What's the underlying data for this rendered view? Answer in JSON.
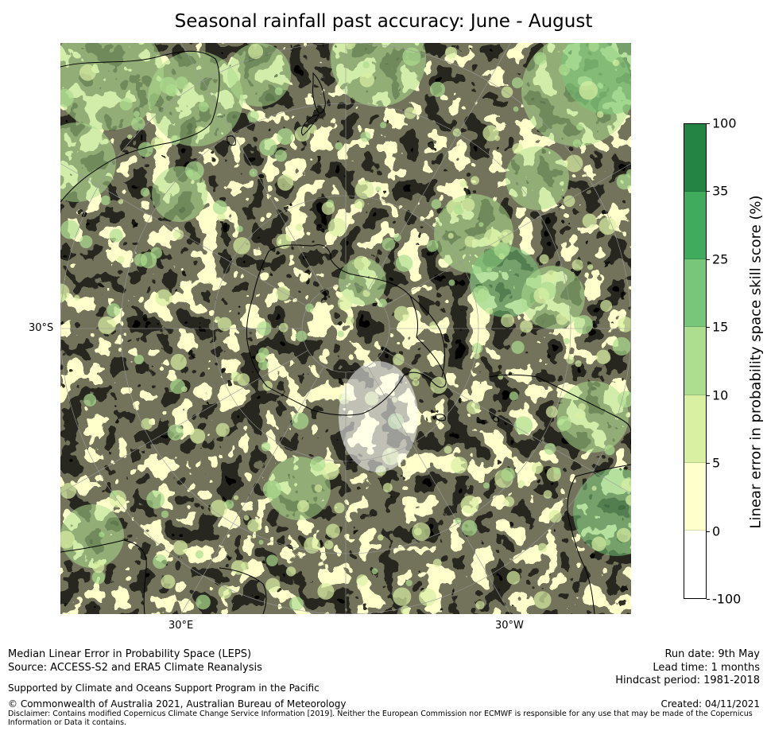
{
  "title": "Seasonal rainfall past accuracy: June - August",
  "map": {
    "labels": {
      "lat_30s": "30°S",
      "lon_30e": "30°E",
      "lon_30w": "30°W"
    },
    "colors": {
      "ocean_low": "#ffffff",
      "land_line": "#000000",
      "grid": "#9a9a9a"
    }
  },
  "colorbar": {
    "label": "Linear error in probability space skill score (%)",
    "ticks": [
      "100",
      "35",
      "25",
      "15",
      "10",
      "5",
      "0",
      "-100"
    ],
    "bins": [
      {
        "range": "35 to 100",
        "color": "#238443"
      },
      {
        "range": "25 to 35",
        "color": "#41ab5d"
      },
      {
        "range": "15 to 25",
        "color": "#78c679"
      },
      {
        "range": "10 to 15",
        "color": "#addd8e"
      },
      {
        "range": "5 to 10",
        "color": "#d9f0a3"
      },
      {
        "range": "0 to 5",
        "color": "#ffffcc"
      },
      {
        "range": "-100 to 0",
        "color": "#ffffff"
      }
    ]
  },
  "footer": {
    "line1": "Median Linear Error in Probability Space (LEPS)",
    "line2": "Source: ACCESS-S2 and ERA5 Climate Reanalysis",
    "support": "Supported by Climate and Oceans Support Program in the Pacific",
    "copyright": "© Commonwealth of Australia 2021, Australian Bureau of Meteorology",
    "disclaimer1": "Disclaimer: Contains modified Copernicus Climate Change Service Information [2019]. Neither the European Commission nor ECMWF is responsible for any use that may be made of the Copernicus",
    "disclaimer2": "Information or Data it contains.",
    "run_date": "Run date: 9th May",
    "lead_time": "Lead time: 1 months",
    "hindcast": "Hindcast period: 1981-2018",
    "created": "Created: 04/11/2021"
  }
}
